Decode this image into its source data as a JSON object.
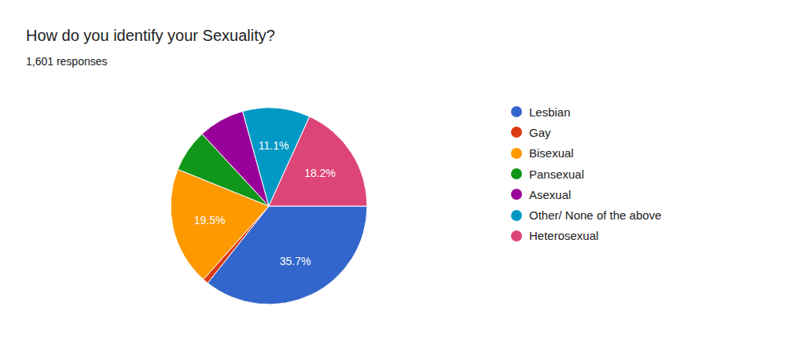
{
  "chart_data": {
    "type": "pie",
    "title": "How do you identify your Sexuality?",
    "subtitle": "1,601 responses",
    "categories": [
      "Lesbian",
      "Gay",
      "Bisexual",
      "Pansexual",
      "Asexual",
      "Other/ None of the above",
      "Heterosexual"
    ],
    "values": [
      35.7,
      0.9,
      19.5,
      7.0,
      7.6,
      11.1,
      18.2
    ],
    "value_labels": [
      "35.7%",
      null,
      "19.5%",
      null,
      null,
      "11.1%",
      "18.2%"
    ],
    "colors": [
      "#3366cc",
      "#dc3912",
      "#ff9900",
      "#109618",
      "#990099",
      "#0099c6",
      "#dd4477"
    ],
    "data_labels": true,
    "legend": "right"
  }
}
